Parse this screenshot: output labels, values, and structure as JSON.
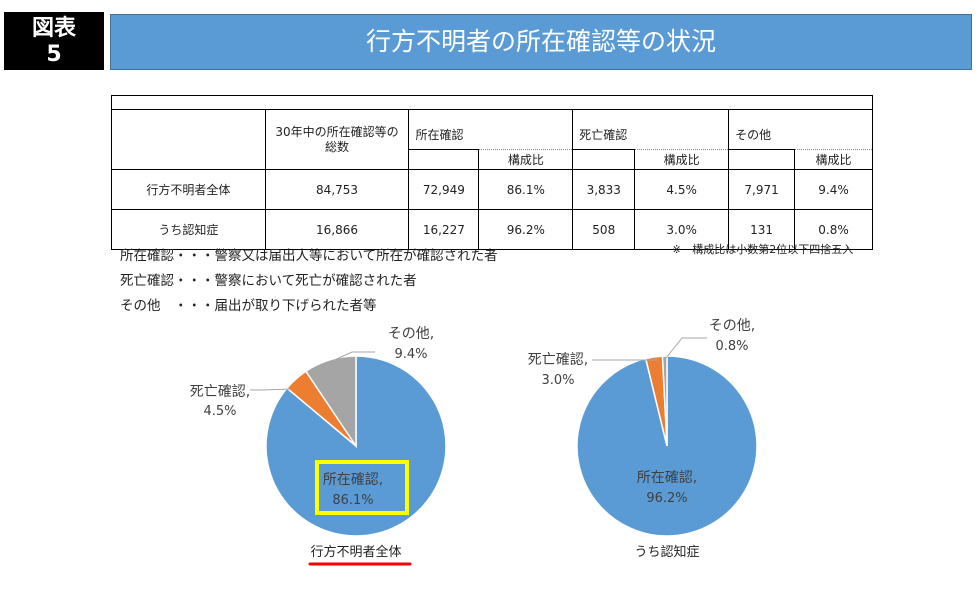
{
  "figure_label": {
    "line1": "図表",
    "line2": "5"
  },
  "title": "行方不明者の所在確認等の状況",
  "table": {
    "header_total": "30年中の所在確認等の総数",
    "groups": [
      "所在確認",
      "死亡確認",
      "その他"
    ],
    "ratio_label": "構成比",
    "rows": [
      {
        "label": "行方不明者全体",
        "total": "84,753",
        "confirmed": "72,949",
        "confirmed_ratio": "86.1%",
        "death": "3,833",
        "death_ratio": "4.5%",
        "other": "7,971",
        "other_ratio": "9.4%"
      },
      {
        "label": "うち認知症",
        "total": "16,866",
        "confirmed": "16,227",
        "confirmed_ratio": "96.2%",
        "death": "508",
        "death_ratio": "3.0%",
        "other": "131",
        "other_ratio": "0.8%"
      }
    ]
  },
  "rounding_note": "※　構成比は小数第2位以下四捨五入",
  "definitions": [
    "所在確認・・・警察又は届出人等において所在が確認された者",
    "死亡確認・・・警察において死亡が確認された者",
    "その他　・・・届出が取り下げられた者等"
  ],
  "colors": {
    "title_bar": "#5b9bd5",
    "confirmed": "#5b9bd5",
    "death": "#ed7d31",
    "other": "#a5a5a5",
    "highlight_box": "#ffff00",
    "underline": "#ff0000"
  },
  "chart_data": [
    {
      "type": "pie",
      "title": "行方不明者全体",
      "series": [
        {
          "name": "所在確認",
          "value": 86.1,
          "label": "86.1%"
        },
        {
          "name": "死亡確認",
          "value": 4.5,
          "label": "4.5%"
        },
        {
          "name": "その他",
          "value": 9.4,
          "label": "9.4%"
        }
      ]
    },
    {
      "type": "pie",
      "title": "うち認知症",
      "series": [
        {
          "name": "所在確認",
          "value": 96.2,
          "label": "96.2%"
        },
        {
          "name": "死亡確認",
          "value": 3.0,
          "label": "3.0%"
        },
        {
          "name": "その他",
          "value": 0.8,
          "label": "0.8%"
        }
      ]
    }
  ]
}
